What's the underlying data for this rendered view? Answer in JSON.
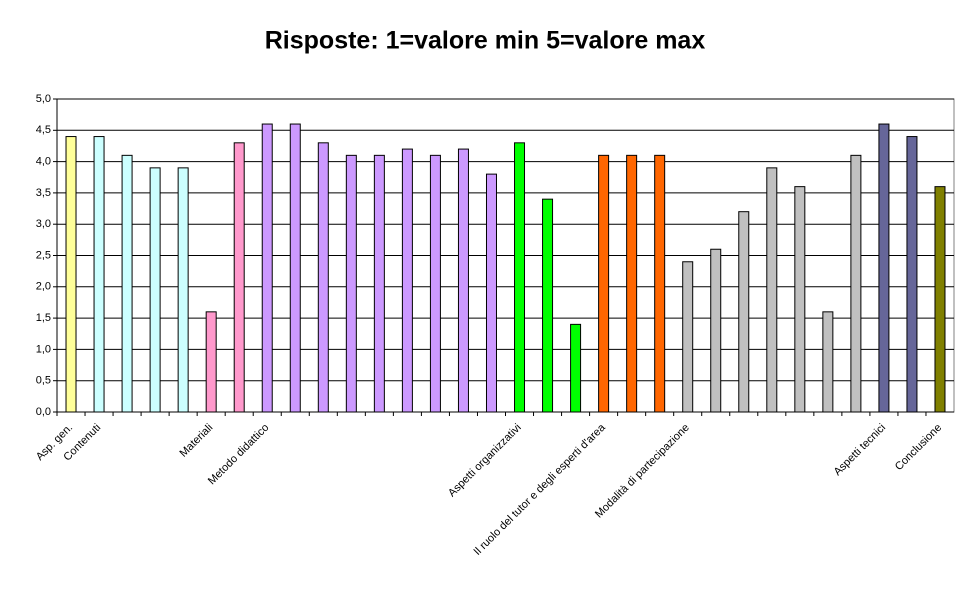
{
  "chart_data": {
    "type": "bar",
    "title": "Risposte: 1=valore min 5=valore max",
    "categories": [
      "Asp. gen.",
      "Contenuti",
      null,
      null,
      null,
      "Materiali",
      null,
      "Metodo didattico",
      null,
      null,
      null,
      null,
      null,
      null,
      null,
      null,
      "Aspetti organizzativi",
      null,
      null,
      "Il ruolo del tutor e degli esperti d'area",
      null,
      null,
      "Modalità di partecipazione",
      null,
      null,
      null,
      null,
      null,
      null,
      "Aspetti tecnici",
      null,
      "Conclusione"
    ],
    "values": [
      4.4,
      4.4,
      4.1,
      3.9,
      3.9,
      1.6,
      4.3,
      4.6,
      4.6,
      4.3,
      4.1,
      4.1,
      4.2,
      4.1,
      4.2,
      3.8,
      4.3,
      3.4,
      1.4,
      4.1,
      4.1,
      4.1,
      2.4,
      2.6,
      3.2,
      3.9,
      3.6,
      1.6,
      4.1,
      4.6,
      4.4,
      3.6
    ],
    "colors": [
      "#ffff99",
      "#ccffff",
      "#ccffff",
      "#ccffff",
      "#ccffff",
      "#ff99cc",
      "#ff99cc",
      "#cc99ff",
      "#cc99ff",
      "#cc99ff",
      "#cc99ff",
      "#cc99ff",
      "#cc99ff",
      "#cc99ff",
      "#cc99ff",
      "#cc99ff",
      "#00ff00",
      "#00ff00",
      "#00ff00",
      "#ff6600",
      "#ff6600",
      "#ff6600",
      "#c0c0c0",
      "#c0c0c0",
      "#c0c0c0",
      "#c0c0c0",
      "#c0c0c0",
      "#c0c0c0",
      "#c0c0c0",
      "#666699",
      "#666699",
      "#808000"
    ],
    "ylim": [
      0,
      5
    ],
    "yticks": [
      {
        "value": 0,
        "label": "0,0"
      },
      {
        "value": 0.5,
        "label": "0,5"
      },
      {
        "value": 1,
        "label": "1,0"
      },
      {
        "value": 1.5,
        "label": "1,5"
      },
      {
        "value": 2,
        "label": "2,0"
      },
      {
        "value": 2.5,
        "label": "2,5"
      },
      {
        "value": 3,
        "label": "3,0"
      },
      {
        "value": 3.5,
        "label": "3,5"
      },
      {
        "value": 4,
        "label": "4,0"
      },
      {
        "value": 4.5,
        "label": "4,5"
      },
      {
        "value": 5,
        "label": "5,0"
      }
    ],
    "grid": true
  }
}
